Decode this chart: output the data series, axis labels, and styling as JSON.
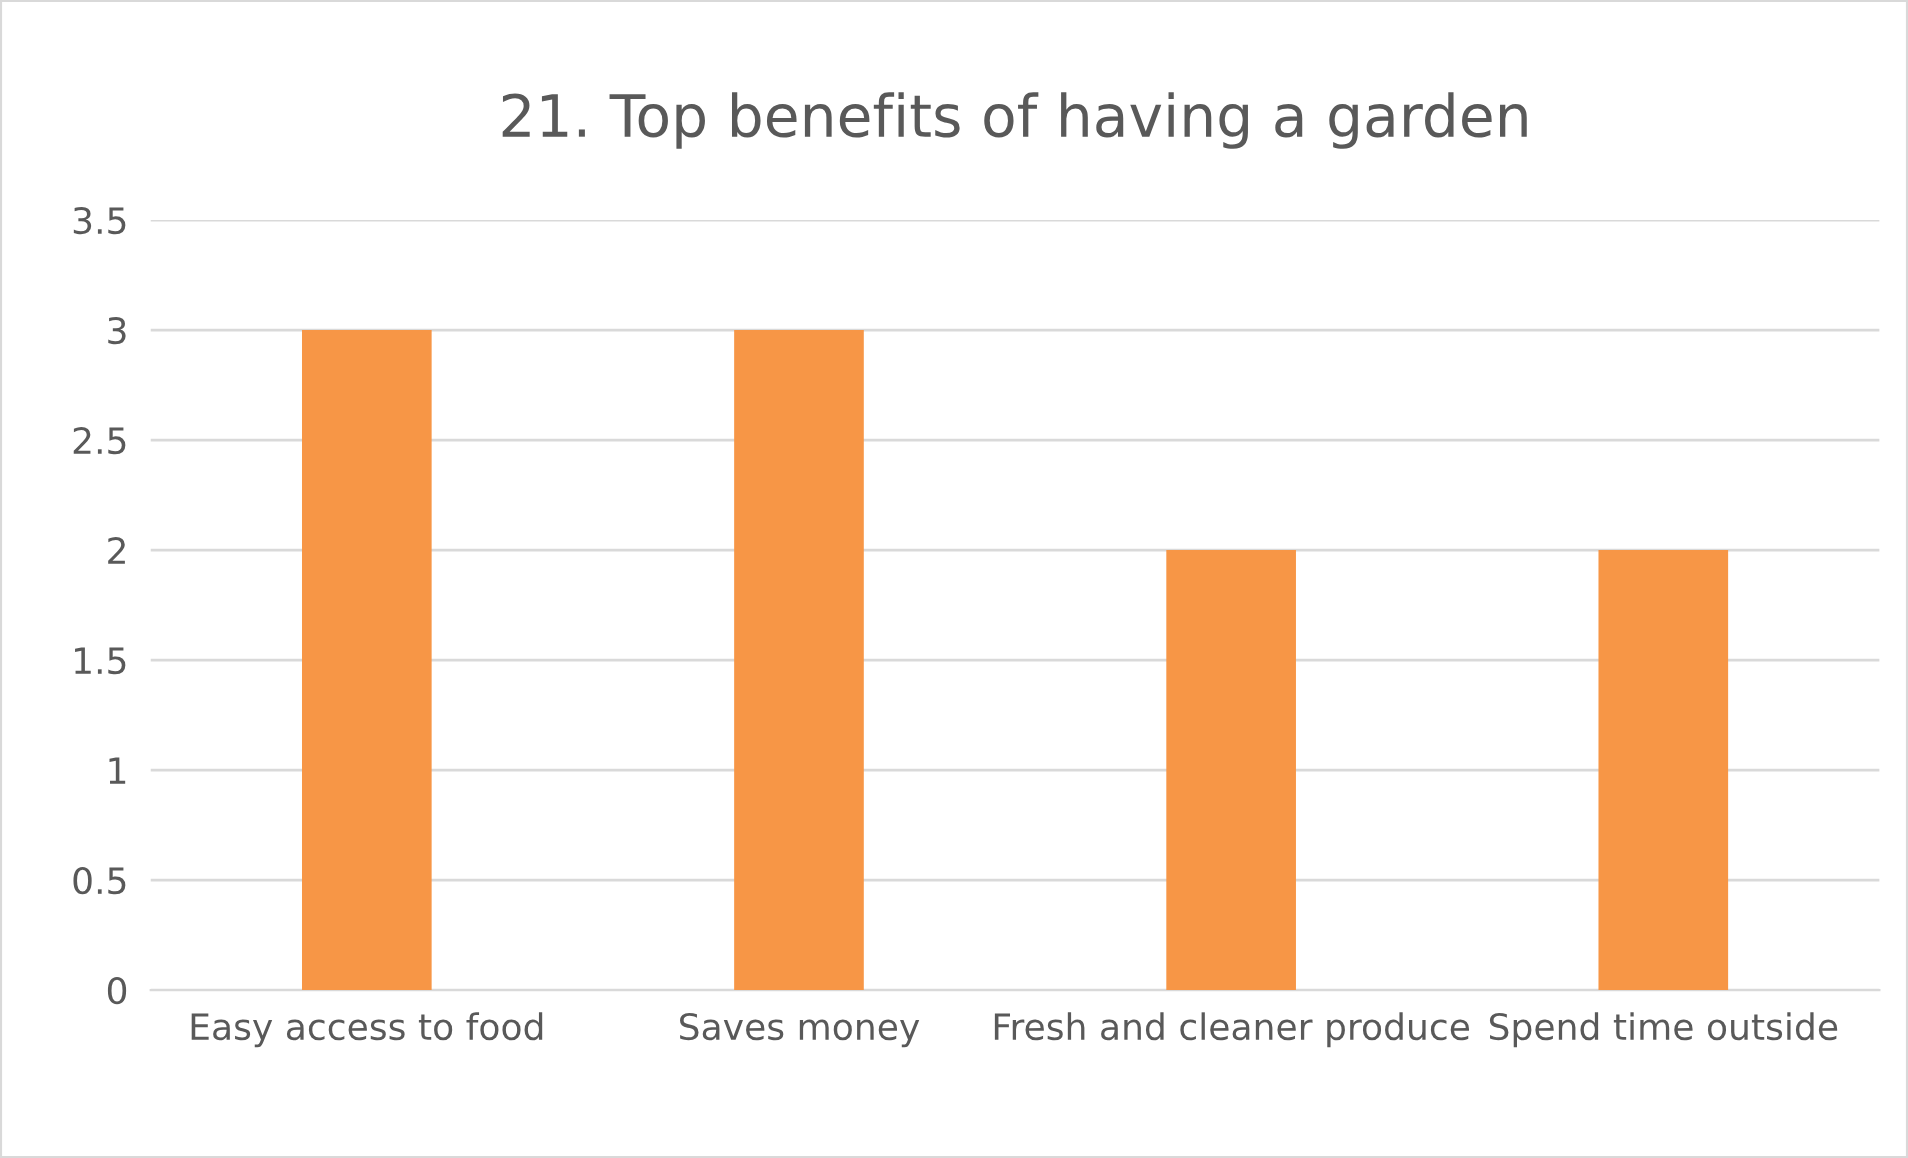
{
  "chart_data": {
    "type": "bar",
    "title": "21. Top benefits of having a garden",
    "categories": [
      "Easy access to food",
      "Saves money",
      "Fresh and cleaner produce",
      "Spend time outside"
    ],
    "values": [
      3,
      3,
      2,
      2
    ],
    "color": "#f79646",
    "ylim": [
      0,
      3.5
    ],
    "yticks": [
      0,
      0.5,
      1,
      1.5,
      2,
      2.5,
      3,
      3.5
    ],
    "grid": "y",
    "legend": false
  }
}
